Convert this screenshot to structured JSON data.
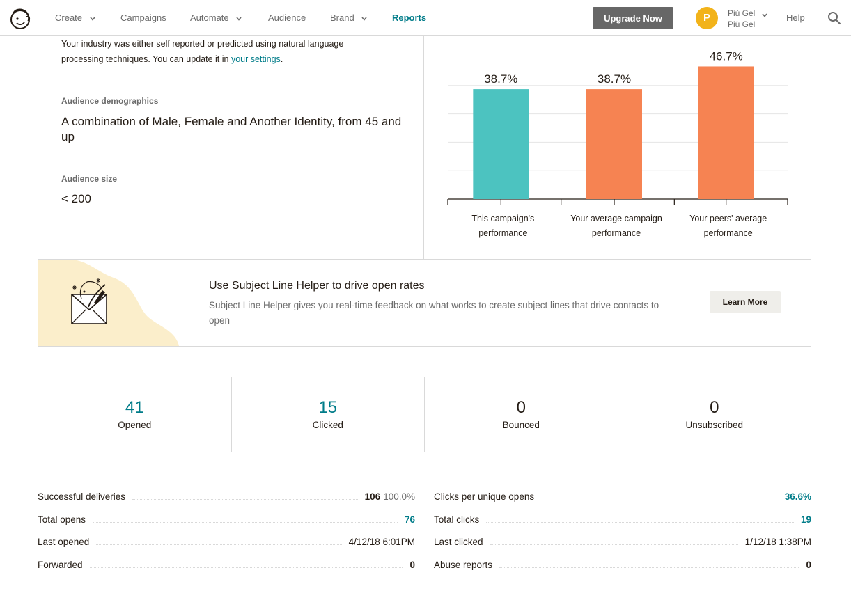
{
  "nav": {
    "items": [
      {
        "label": "Create",
        "has_menu": true
      },
      {
        "label": "Campaigns",
        "has_menu": false
      },
      {
        "label": "Automate",
        "has_menu": true
      },
      {
        "label": "Audience",
        "has_menu": false
      },
      {
        "label": "Brand",
        "has_menu": true
      },
      {
        "label": "Reports",
        "has_menu": false,
        "active": true
      }
    ],
    "upgrade_label": "Upgrade Now",
    "avatar_initial": "P",
    "account_name": "Più Gel",
    "account_org": "Più Gel",
    "help_label": "Help",
    "accent_color": "#007c89",
    "upgrade_color": "#676767",
    "avatar_color": "#f2b31a"
  },
  "industry": {
    "note_text": "Your industry was either self reported or predicted using natural language processing techniques. You can update it in ",
    "settings_link": "your settings",
    "note_end": "."
  },
  "demographics": {
    "label": "Audience demographics",
    "value": "A combination of Male, Female and Another Identity, from 45 and up"
  },
  "audience_size": {
    "label": "Audience size",
    "value": "< 200"
  },
  "chart_data": {
    "type": "bar",
    "categories": [
      "This campaign's performance",
      "Your average campaign performance",
      "Your peers' average performance"
    ],
    "category_lines": [
      [
        "This campaign's",
        "performance"
      ],
      [
        "Your average campaign",
        "performance"
      ],
      [
        "Your peers' average",
        "performance"
      ]
    ],
    "values": [
      38.7,
      38.7,
      46.7
    ],
    "value_labels": [
      "38.7%",
      "38.7%",
      "46.7%"
    ],
    "colors": [
      "#4cc3c0",
      "#f68352",
      "#f68352"
    ],
    "title": "",
    "xlabel": "",
    "ylabel": "",
    "ylim": [
      0,
      50
    ],
    "grid": true
  },
  "helper": {
    "title": "Use Subject Line Helper to drive open rates",
    "description": "Subject Line Helper gives you real-time feedback on what works to create subject lines that drive contacts to open",
    "button_label": "Learn More"
  },
  "stats": [
    {
      "value": "41",
      "label": "Opened",
      "highlight": true
    },
    {
      "value": "15",
      "label": "Clicked",
      "highlight": true
    },
    {
      "value": "0",
      "label": "Bounced",
      "highlight": false
    },
    {
      "value": "0",
      "label": "Unsubscribed",
      "highlight": false
    }
  ],
  "details_left": [
    {
      "label": "Successful deliveries",
      "value": "106",
      "extra": "100.0%",
      "style": "bold"
    },
    {
      "label": "Total opens",
      "value": "76",
      "style": "teal"
    },
    {
      "label": "Last opened",
      "value": "4/12/18 6:01PM",
      "style": "plain"
    },
    {
      "label": "Forwarded",
      "value": "0",
      "style": "bold"
    }
  ],
  "details_right": [
    {
      "label": "Clicks per unique opens",
      "value": "36.6%",
      "style": "teal"
    },
    {
      "label": "Total clicks",
      "value": "19",
      "style": "teal"
    },
    {
      "label": "Last clicked",
      "value": "1/12/18 1:38PM",
      "style": "plain"
    },
    {
      "label": "Abuse reports",
      "value": "0",
      "style": "bold"
    }
  ]
}
